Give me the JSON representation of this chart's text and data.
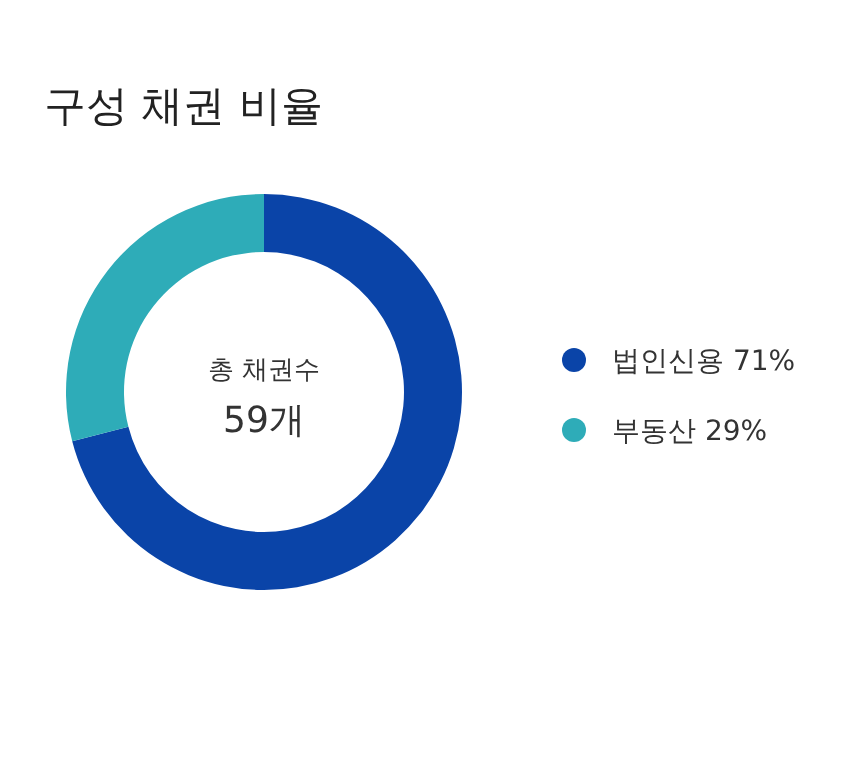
{
  "chart_data": {
    "type": "donut",
    "title": "구성 채권 비율",
    "categories": [
      "법인신용",
      "부동산"
    ],
    "values": [
      71,
      29
    ],
    "value_labels": [
      "71%",
      "29%"
    ],
    "colors": [
      "#0a44a8",
      "#2eacb8"
    ],
    "annotations": [
      "총 채권수",
      "59개"
    ],
    "legend": "right"
  }
}
